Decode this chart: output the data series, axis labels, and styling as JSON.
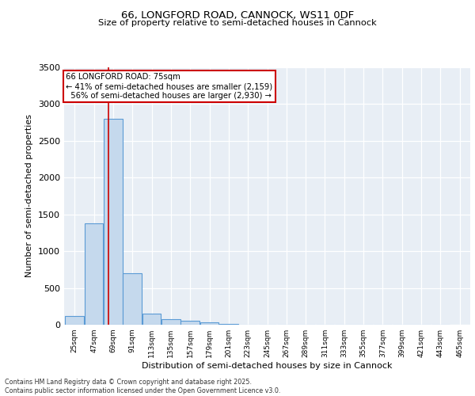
{
  "title1": "66, LONGFORD ROAD, CANNOCK, WS11 0DF",
  "title2": "Size of property relative to semi-detached houses in Cannock",
  "xlabel": "Distribution of semi-detached houses by size in Cannock",
  "ylabel": "Number of semi-detached properties",
  "bin_labels": [
    "25sqm",
    "47sqm",
    "69sqm",
    "91sqm",
    "113sqm",
    "135sqm",
    "157sqm",
    "179sqm",
    "201sqm",
    "223sqm",
    "245sqm",
    "267sqm",
    "289sqm",
    "311sqm",
    "333sqm",
    "355sqm",
    "377sqm",
    "399sqm",
    "421sqm",
    "443sqm",
    "465sqm"
  ],
  "bin_edges": [
    25,
    47,
    69,
    91,
    113,
    135,
    157,
    179,
    201,
    223,
    245,
    267,
    289,
    311,
    333,
    355,
    377,
    399,
    421,
    443,
    465
  ],
  "bin_width": 22,
  "bar_heights": [
    120,
    1380,
    2800,
    700,
    150,
    80,
    50,
    35,
    10,
    0,
    0,
    0,
    0,
    0,
    0,
    0,
    0,
    0,
    0,
    0
  ],
  "bar_color": "#c5d9ed",
  "bar_edge_color": "#5b9bd5",
  "property_size": 75,
  "property_label": "66 LONGFORD ROAD: 75sqm",
  "pct_smaller": 41,
  "n_smaller": 2159,
  "pct_larger": 56,
  "n_larger": 2930,
  "annotation_box_color": "#ffffff",
  "annotation_box_edge_color": "#cc0000",
  "red_line_color": "#cc0000",
  "ylim": [
    0,
    3500
  ],
  "yticks": [
    0,
    500,
    1000,
    1500,
    2000,
    2500,
    3000,
    3500
  ],
  "background_color": "#e8eef5",
  "grid_color": "#ffffff",
  "footer_line1": "Contains HM Land Registry data © Crown copyright and database right 2025.",
  "footer_line2": "Contains public sector information licensed under the Open Government Licence v3.0."
}
